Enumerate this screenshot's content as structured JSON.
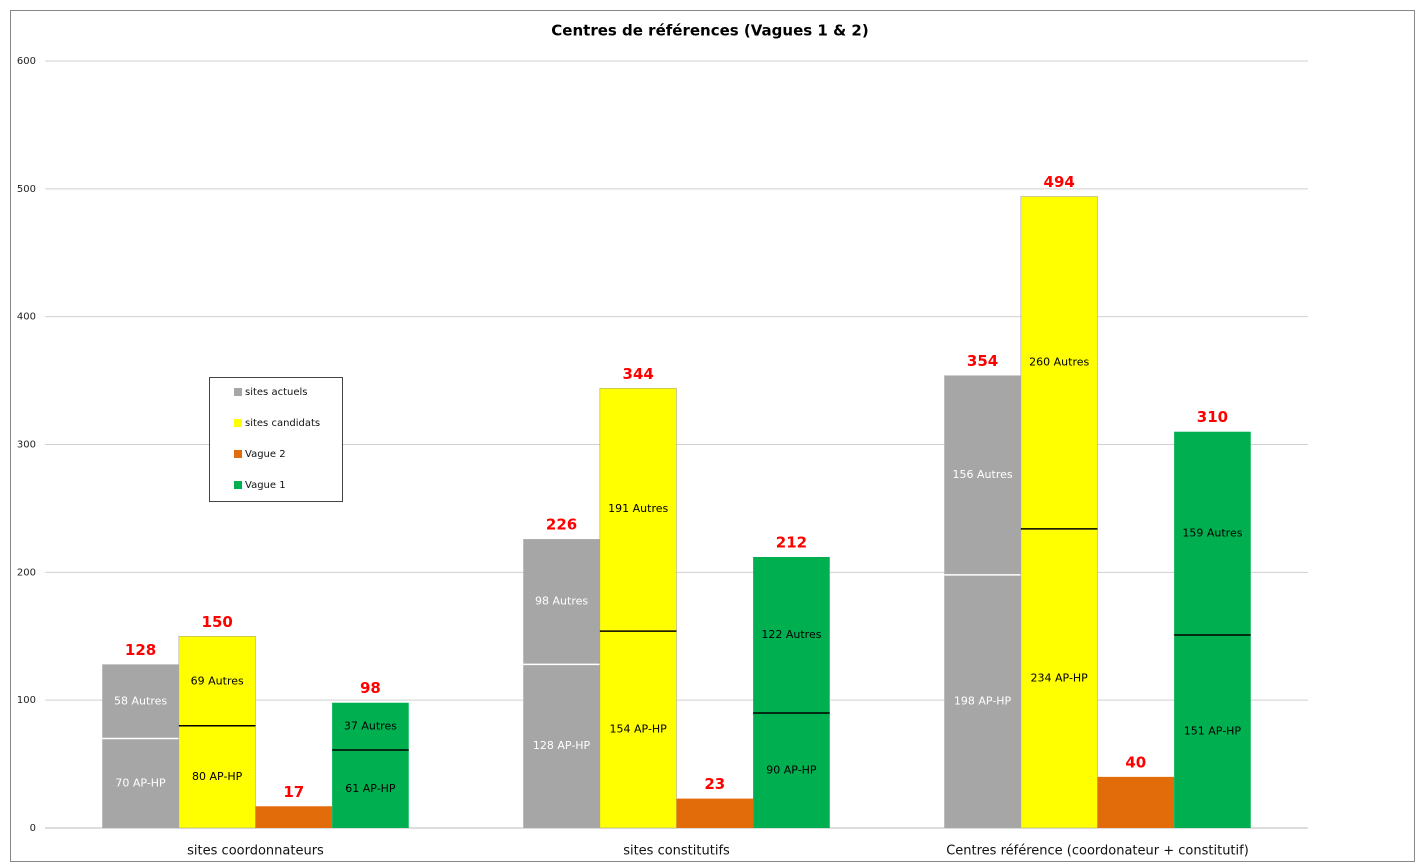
{
  "chart_data": {
    "type": "bar",
    "title": "Centres de références (Vagues 1 & 2)",
    "categories": [
      "sites coordonnateurs",
      "sites constitutifs",
      "Centres référence (coordonateur + constitutif)"
    ],
    "ylim": [
      0,
      600
    ],
    "yticks": [
      0,
      100,
      200,
      300,
      400,
      500,
      600
    ],
    "grid": true,
    "series": [
      {
        "name": "sites actuels",
        "color": "#a6a6a6",
        "text_color": "#ffffff",
        "divider_color": "#ffffff",
        "values": [
          128,
          226,
          354
        ],
        "ap_hp": [
          70,
          128,
          198
        ],
        "autres": [
          58,
          98,
          156
        ],
        "ap_hp_labels": [
          "70 AP-HP",
          "128 AP-HP",
          "198 AP-HP"
        ],
        "autres_labels": [
          "58 Autres",
          "98 Autres",
          "156 Autres"
        ]
      },
      {
        "name": "sites candidats",
        "color": "#ffff00",
        "text_color": "#000000",
        "divider_color": "#000000",
        "values": [
          150,
          344,
          494
        ],
        "ap_hp": [
          80,
          154,
          234
        ],
        "autres": [
          69,
          191,
          260
        ],
        "ap_hp_labels": [
          "80 AP-HP",
          "154 AP-HP",
          "234 AP-HP"
        ],
        "autres_labels": [
          "69 Autres",
          "191 Autres",
          "260 Autres"
        ]
      },
      {
        "name": "Vague 2",
        "color": "#e36c0a",
        "values": [
          17,
          23,
          40
        ]
      },
      {
        "name": "Vague 1",
        "color": "#00b050",
        "text_color": "#000000",
        "divider_color": "#000000",
        "values": [
          98,
          212,
          310
        ],
        "ap_hp": [
          61,
          90,
          151
        ],
        "autres": [
          37,
          122,
          159
        ],
        "ap_hp_labels": [
          "61 AP-HP",
          "90 AP-HP",
          "151 AP-HP"
        ],
        "autres_labels": [
          "37 Autres",
          "122 Autres",
          "159 Autres"
        ]
      }
    ]
  }
}
